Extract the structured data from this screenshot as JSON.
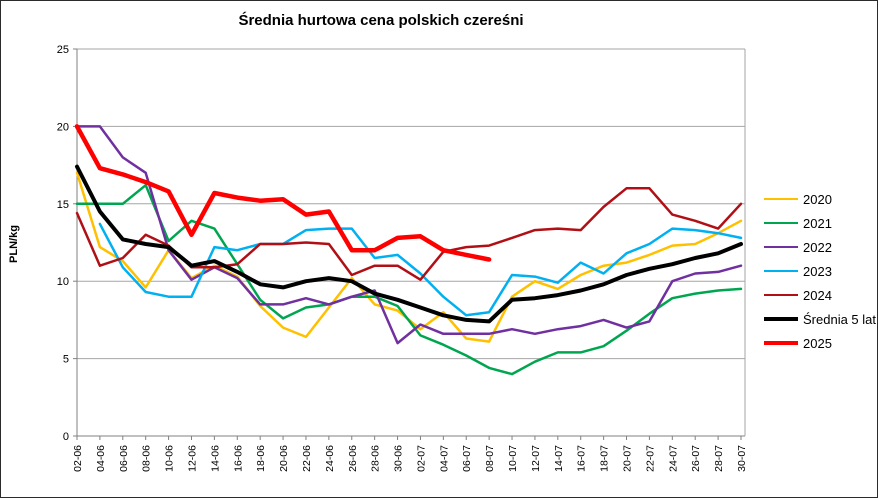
{
  "chart_data": {
    "type": "line",
    "title": "Średnia hurtowa cena polskich czereśni",
    "ylabel": "PLN/kg",
    "ylim": [
      0,
      25
    ],
    "yticks": [
      0,
      5,
      10,
      15,
      20,
      25
    ],
    "grid": "horizontal",
    "legend_position": "right",
    "categories": [
      "02-06",
      "04-06",
      "06-06",
      "08-06",
      "10-06",
      "12-06",
      "14-06",
      "16-06",
      "18-06",
      "20-06",
      "22-06",
      "24-06",
      "26-06",
      "28-06",
      "30-06",
      "02-07",
      "04-07",
      "06-07",
      "08-07",
      "10-07",
      "12-07",
      "14-07",
      "16-07",
      "18-07",
      "20-07",
      "22-07",
      "24-07",
      "26-07",
      "28-07",
      "30-07"
    ],
    "series": [
      {
        "name": "2020",
        "color": "#FFC000",
        "width": 2.5,
        "values": [
          17.0,
          12.2,
          11.3,
          9.6,
          12.0,
          10.2,
          11.0,
          10.3,
          8.4,
          7.0,
          6.4,
          8.3,
          10.2,
          8.5,
          8.1,
          6.9,
          8.0,
          6.3,
          6.1,
          9.0,
          10.0,
          9.5,
          10.4,
          11.0,
          11.2,
          11.7,
          12.3,
          12.4,
          13.1,
          13.9
        ]
      },
      {
        "name": "2021",
        "color": "#00A550",
        "width": 2.5,
        "values": [
          15.0,
          15.0,
          15.0,
          16.2,
          12.6,
          13.9,
          13.4,
          11.1,
          8.8,
          7.6,
          8.3,
          8.5,
          9.0,
          9.0,
          8.4,
          6.5,
          5.9,
          5.2,
          4.4,
          4.0,
          4.8,
          5.4,
          5.4,
          5.8,
          6.8,
          7.9,
          8.9,
          9.2,
          9.4,
          9.5
        ]
      },
      {
        "name": "2022",
        "color": "#7030A0",
        "width": 2.5,
        "values": [
          20.0,
          20.0,
          18.0,
          17.0,
          12.0,
          10.1,
          10.9,
          10.2,
          8.5,
          8.5,
          8.9,
          8.5,
          9.0,
          9.4,
          6.0,
          7.2,
          6.6,
          6.6,
          6.6,
          6.9,
          6.6,
          6.9,
          7.1,
          7.5,
          7.0,
          7.4,
          10.0,
          10.5,
          10.6,
          11.0
        ]
      },
      {
        "name": "2023",
        "color": "#00B0F0",
        "width": 2.5,
        "values": [
          null,
          13.7,
          10.9,
          9.3,
          9.0,
          9.0,
          12.2,
          12.0,
          12.4,
          12.4,
          13.3,
          13.4,
          13.4,
          11.5,
          11.7,
          10.5,
          9.0,
          7.8,
          8.0,
          10.4,
          10.3,
          9.9,
          11.2,
          10.5,
          11.8,
          12.4,
          13.4,
          13.3,
          13.1,
          12.8
        ]
      },
      {
        "name": "2024",
        "color": "#B01015",
        "width": 2.5,
        "values": [
          14.4,
          11.0,
          11.5,
          13.0,
          12.3,
          10.9,
          10.9,
          11.1,
          12.4,
          12.4,
          12.5,
          12.4,
          10.4,
          11.0,
          11.0,
          10.1,
          11.9,
          12.2,
          12.3,
          12.8,
          13.3,
          13.4,
          13.3,
          14.8,
          16.0,
          16.0,
          14.3,
          13.9,
          13.4,
          15.0
        ]
      },
      {
        "name": "Średnia 5 lat",
        "color": "#000000",
        "width": 4,
        "values": [
          17.4,
          14.5,
          12.7,
          12.4,
          12.2,
          11.0,
          11.3,
          10.6,
          9.8,
          9.6,
          10.0,
          10.2,
          10.0,
          9.2,
          8.8,
          8.3,
          7.8,
          7.5,
          7.4,
          8.8,
          8.9,
          9.1,
          9.4,
          9.8,
          10.4,
          10.8,
          11.1,
          11.5,
          11.8,
          12.4
        ]
      },
      {
        "name": "2025",
        "color": "#FF0000",
        "width": 4.5,
        "values": [
          20.0,
          17.3,
          16.9,
          16.4,
          15.8,
          13.0,
          15.7,
          15.4,
          15.2,
          15.3,
          14.3,
          14.5,
          12.0,
          12.0,
          12.8,
          12.9,
          12.0,
          11.7,
          11.4,
          null,
          null,
          null,
          null,
          null,
          null,
          null,
          null,
          null,
          null,
          null
        ]
      }
    ]
  }
}
